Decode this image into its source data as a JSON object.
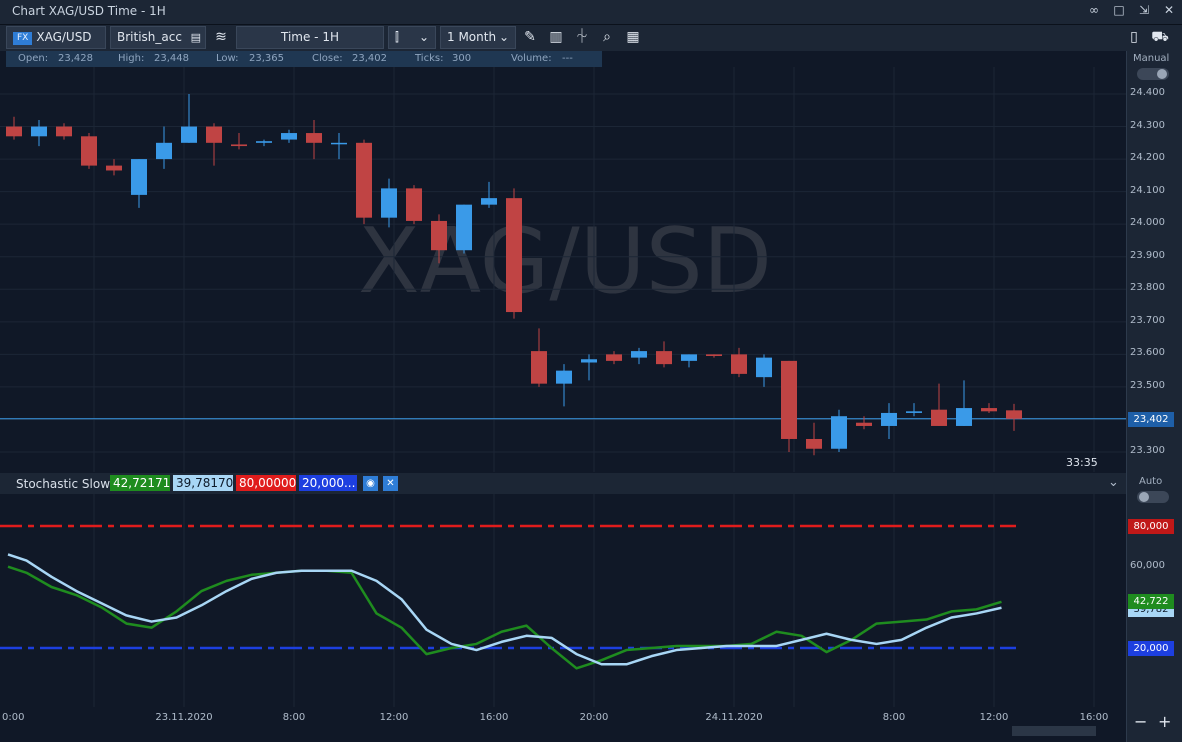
{
  "window": {
    "title": "Chart XAG/USD Time - 1H",
    "controls": [
      "∞",
      "□",
      "⇲",
      "✕"
    ]
  },
  "toolbar": {
    "badge": "FX",
    "symbol": "XAG/USD",
    "account": "British_acc",
    "timeframe": "Time - 1H",
    "range": "1 Month"
  },
  "ohlc": {
    "open_label": "Open:",
    "open": "23,428",
    "high_label": "High:",
    "high": "23,448",
    "low_label": "Low:",
    "low": "23,365",
    "close_label": "Close:",
    "close": "23,402",
    "ticks_label": "Ticks:",
    "ticks": "300",
    "volume_label": "Volume:",
    "volume": "---"
  },
  "right_panel": {
    "manual_label": "Manual",
    "auto_label": "Auto"
  },
  "watermark": "XAG/USD",
  "countdown": "33:35",
  "current_price_tag": "23,402",
  "indicator": {
    "name": "Stochastic Slow",
    "k_value": "42,72171",
    "d_value": "39,78170",
    "upper_level": "80,00000",
    "lower_level": "20,000..."
  },
  "indicator_tags": {
    "upper": "80,000",
    "lower": "20,000",
    "k": "42,722",
    "d": "39,782"
  },
  "colors": {
    "bull": "#3a9ae8",
    "bear": "#c04444",
    "k_line": "#1f8c1f",
    "d_line": "#a8d6f5",
    "upper_level": "#e01c1c",
    "lower_level": "#1d3fe0",
    "price_line": "#3a9ae8"
  },
  "chart_data": [
    {
      "type": "candlestick",
      "title": "XAG/USD",
      "y_ticks": [
        "24.400",
        "24.300",
        "24.200",
        "24.100",
        "24.000",
        "23.900",
        "23.800",
        "23.700",
        "23.600",
        "23.500",
        "23.400",
        "23.300"
      ],
      "ylim": [
        23.25,
        24.45
      ],
      "current_price": 23.402,
      "candles": [
        {
          "o": 24.3,
          "h": 24.33,
          "l": 24.26,
          "c": 24.27
        },
        {
          "o": 24.27,
          "h": 24.32,
          "l": 24.24,
          "c": 24.3
        },
        {
          "o": 24.3,
          "h": 24.31,
          "l": 24.26,
          "c": 24.27
        },
        {
          "o": 24.27,
          "h": 24.28,
          "l": 24.17,
          "c": 24.18
        },
        {
          "o": 24.18,
          "h": 24.2,
          "l": 24.15,
          "c": 24.165
        },
        {
          "o": 24.09,
          "h": 24.2,
          "l": 24.05,
          "c": 24.2
        },
        {
          "o": 24.2,
          "h": 24.3,
          "l": 24.17,
          "c": 24.25
        },
        {
          "o": 24.25,
          "h": 24.4,
          "l": 24.25,
          "c": 24.3
        },
        {
          "o": 24.3,
          "h": 24.31,
          "l": 24.18,
          "c": 24.25
        },
        {
          "o": 24.245,
          "h": 24.28,
          "l": 24.23,
          "c": 24.24
        },
        {
          "o": 24.25,
          "h": 24.26,
          "l": 24.24,
          "c": 24.255
        },
        {
          "o": 24.26,
          "h": 24.29,
          "l": 24.25,
          "c": 24.28
        },
        {
          "o": 24.28,
          "h": 24.32,
          "l": 24.2,
          "c": 24.25
        },
        {
          "o": 24.25,
          "h": 24.28,
          "l": 24.2,
          "c": 24.25
        },
        {
          "o": 24.25,
          "h": 24.26,
          "l": 24.0,
          "c": 24.02
        },
        {
          "o": 24.02,
          "h": 24.14,
          "l": 23.99,
          "c": 24.11
        },
        {
          "o": 24.11,
          "h": 24.12,
          "l": 24.0,
          "c": 24.01
        },
        {
          "o": 24.01,
          "h": 24.03,
          "l": 23.88,
          "c": 23.92
        },
        {
          "o": 23.92,
          "h": 24.06,
          "l": 23.91,
          "c": 24.06
        },
        {
          "o": 24.06,
          "h": 24.13,
          "l": 24.05,
          "c": 24.08
        },
        {
          "o": 24.08,
          "h": 24.11,
          "l": 23.71,
          "c": 23.73
        },
        {
          "o": 23.61,
          "h": 23.68,
          "l": 23.5,
          "c": 23.51
        },
        {
          "o": 23.51,
          "h": 23.57,
          "l": 23.44,
          "c": 23.55
        },
        {
          "o": 23.575,
          "h": 23.6,
          "l": 23.52,
          "c": 23.585
        },
        {
          "o": 23.6,
          "h": 23.61,
          "l": 23.57,
          "c": 23.58
        },
        {
          "o": 23.59,
          "h": 23.62,
          "l": 23.57,
          "c": 23.61
        },
        {
          "o": 23.61,
          "h": 23.64,
          "l": 23.56,
          "c": 23.57
        },
        {
          "o": 23.58,
          "h": 23.6,
          "l": 23.56,
          "c": 23.6
        },
        {
          "o": 23.6,
          "h": 23.6,
          "l": 23.59,
          "c": 23.595
        },
        {
          "o": 23.6,
          "h": 23.62,
          "l": 23.53,
          "c": 23.54
        },
        {
          "o": 23.53,
          "h": 23.6,
          "l": 23.5,
          "c": 23.59
        },
        {
          "o": 23.58,
          "h": 23.58,
          "l": 23.3,
          "c": 23.34
        },
        {
          "o": 23.34,
          "h": 23.39,
          "l": 23.29,
          "c": 23.31
        },
        {
          "o": 23.31,
          "h": 23.43,
          "l": 23.3,
          "c": 23.41
        },
        {
          "o": 23.39,
          "h": 23.41,
          "l": 23.37,
          "c": 23.38
        },
        {
          "o": 23.38,
          "h": 23.45,
          "l": 23.34,
          "c": 23.42
        },
        {
          "o": 23.42,
          "h": 23.45,
          "l": 23.41,
          "c": 23.425
        },
        {
          "o": 23.43,
          "h": 23.51,
          "l": 23.38,
          "c": 23.38
        },
        {
          "o": 23.38,
          "h": 23.52,
          "l": 23.38,
          "c": 23.435
        },
        {
          "o": 23.435,
          "h": 23.45,
          "l": 23.42,
          "c": 23.425
        },
        {
          "o": 23.428,
          "h": 23.448,
          "l": 23.365,
          "c": 23.402
        }
      ]
    },
    {
      "type": "line",
      "title": "Stochastic Slow",
      "y_ticks": [
        "80,000",
        "60,000",
        "20,000"
      ],
      "ylim": [
        -12,
        92
      ],
      "levels": [
        80,
        20
      ],
      "series": [
        {
          "name": "42,72171",
          "values": [
            57,
            50,
            46,
            40,
            32,
            30,
            38,
            48,
            53,
            56,
            57,
            58,
            58,
            57,
            37,
            30,
            17,
            20,
            22,
            28,
            31,
            20,
            10,
            14,
            19,
            20,
            21,
            21,
            21,
            22,
            28,
            26,
            18,
            24,
            32,
            33,
            34,
            38,
            39,
            42.72
          ]
        },
        {
          "name": "39,78170",
          "values": [
            63,
            55,
            48,
            42,
            36,
            33,
            35,
            41,
            48,
            54,
            57,
            58,
            58,
            58,
            53,
            44,
            29,
            22,
            19,
            23,
            26,
            25,
            17,
            12,
            12,
            16,
            19,
            20,
            21,
            21,
            21,
            24,
            27,
            24,
            22,
            24,
            30,
            35,
            37,
            39.78
          ]
        }
      ]
    }
  ],
  "x_axis": {
    "labels": [
      {
        "text": "0:00",
        "t": -0.1
      },
      {
        "text": "23.11.2020",
        "t": 6.8
      },
      {
        "text": "8:00",
        "t": 11.2
      },
      {
        "text": "12:00",
        "t": 15.2
      },
      {
        "text": "16:00",
        "t": 19.2
      },
      {
        "text": "20:00",
        "t": 23.2
      },
      {
        "text": "24.11.2020",
        "t": 28.8
      },
      {
        "text": "8:00",
        "t": 35.2
      },
      {
        "text": "12:00",
        "t": 39.2
      },
      {
        "text": "16:00",
        "t": 43.2
      }
    ]
  }
}
